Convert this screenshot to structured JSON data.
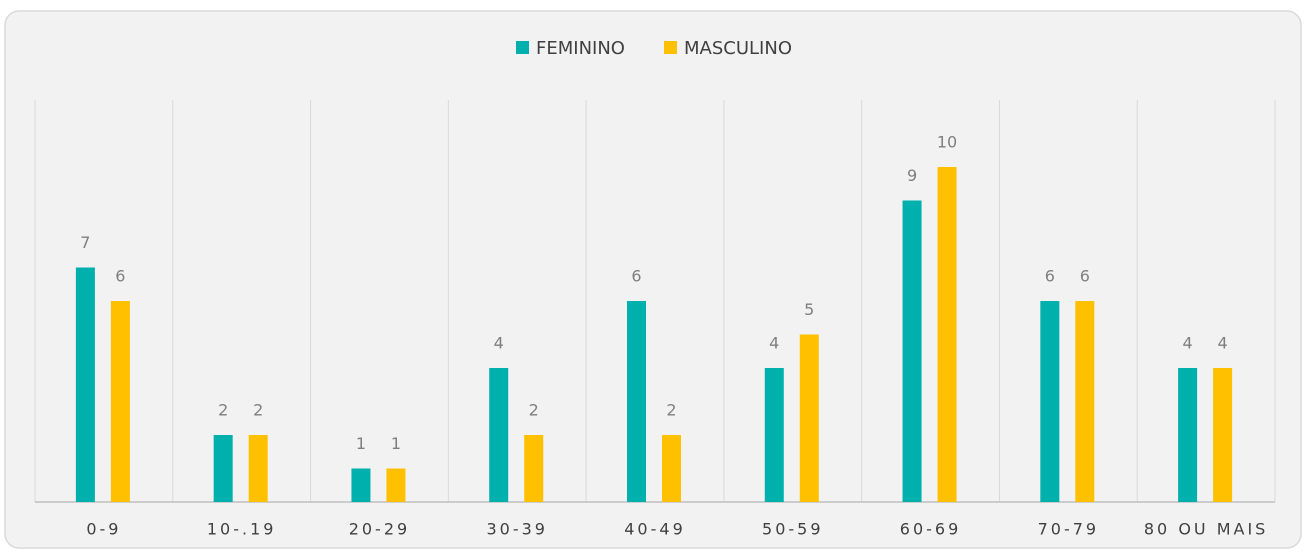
{
  "chart_data": {
    "type": "bar",
    "categories": [
      "0-9",
      "10-.19",
      "20-29",
      "30-39",
      "40-49",
      "50-59",
      "60-69",
      "70-79",
      "80 OU MAIS"
    ],
    "series": [
      {
        "name": "FEMININO",
        "color": "#00b0ac",
        "values": [
          7,
          2,
          1,
          4,
          6,
          4,
          9,
          6,
          4
        ]
      },
      {
        "name": "MASCULINO",
        "color": "#ffc000",
        "values": [
          6,
          2,
          1,
          2,
          2,
          5,
          10,
          6,
          4
        ]
      }
    ],
    "ylim": [
      0,
      12
    ],
    "legend": "top",
    "data_labels": true
  }
}
